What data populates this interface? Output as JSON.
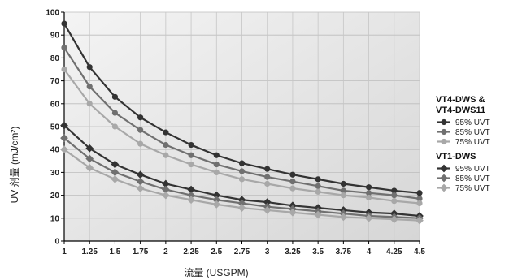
{
  "chart_data": {
    "type": "line",
    "xlabel": "流量 (USGPM)",
    "ylabel": "UV 剂量 (mJ/cm²)",
    "xlim": [
      1,
      4.5
    ],
    "ylim": [
      0,
      100
    ],
    "x": [
      1,
      1.25,
      1.5,
      1.75,
      2,
      2.25,
      2.5,
      2.75,
      3,
      3.25,
      3.5,
      3.75,
      4,
      4.25,
      4.5
    ],
    "x_tick_labels": [
      "1",
      "1.25",
      "1.5",
      "1.75",
      "2",
      "2.25",
      "2.5",
      "2.75",
      "3",
      "3.25",
      "3.5",
      "3.75",
      "4",
      "4.25",
      "4.5"
    ],
    "y_ticks": [
      0,
      10,
      20,
      30,
      40,
      50,
      60,
      70,
      80,
      90,
      100
    ],
    "grid": true,
    "legend_position": "right",
    "groups": [
      {
        "title_lines": [
          "VT4-DWS &",
          "VT4-DWS11"
        ],
        "marker": "circle",
        "series": [
          {
            "name": "95% UVT",
            "color": "#333333",
            "values": [
              95,
              76,
              63,
              54,
              47.5,
              42,
              37.5,
              34,
              31.5,
              29,
              27,
              25,
              23.5,
              22,
              21
            ]
          },
          {
            "name": "85% UVT",
            "color": "#707070",
            "values": [
              84.5,
              67.5,
              56,
              48.5,
              42,
              37.5,
              33.5,
              30.5,
              28,
              26,
              24,
              22,
              21,
              20,
              18.5
            ]
          },
          {
            "name": "75% UVT",
            "color": "#a8a8a8",
            "values": [
              75,
              60,
              50,
              42.5,
              37.5,
              33.5,
              30,
              27,
              25,
              23,
              21.5,
              20,
              19,
              17.5,
              16.5
            ]
          }
        ]
      },
      {
        "title_lines": [
          "VT1-DWS"
        ],
        "marker": "diamond",
        "series": [
          {
            "name": "95% UVT",
            "color": "#333333",
            "values": [
              50.5,
              40.5,
              33.5,
              29,
              25,
              22.5,
              20,
              18,
              17,
              15.5,
              14.5,
              13.5,
              12.5,
              12,
              11
            ]
          },
          {
            "name": "85% UVT",
            "color": "#707070",
            "values": [
              45,
              36,
              30,
              26,
              22.5,
              20,
              18,
              16.5,
              15,
              14,
              13,
              12,
              11,
              10.5,
              10
            ]
          },
          {
            "name": "75% UVT",
            "color": "#a8a8a8",
            "values": [
              40,
              32,
              27,
              23,
              20,
              18,
              16,
              14.5,
              13.5,
              12.5,
              11.5,
              10.5,
              10,
              9.5,
              9
            ]
          }
        ]
      }
    ]
  }
}
